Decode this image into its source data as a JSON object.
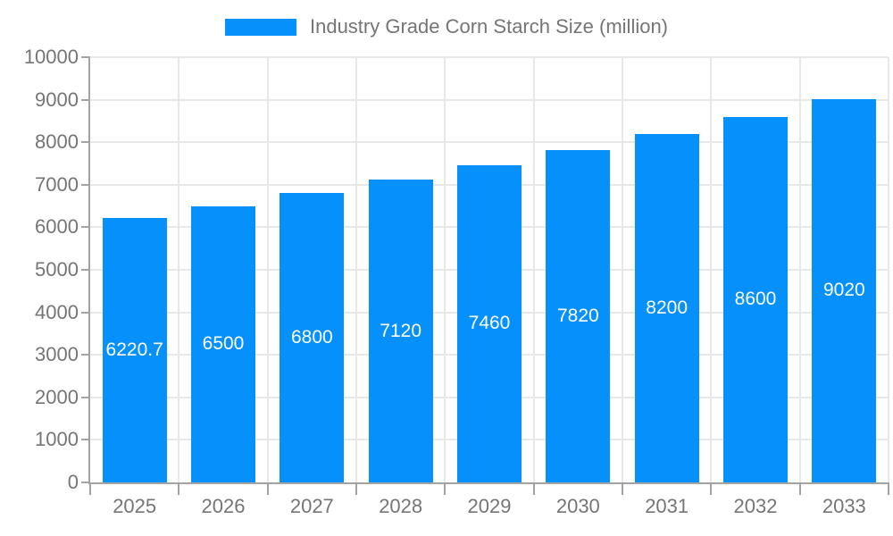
{
  "chart_data": {
    "type": "bar",
    "title": "",
    "legend_entries": [
      "Industry Grade Corn Starch Size (million)"
    ],
    "legend_position": "top-center",
    "categories": [
      "2025",
      "2026",
      "2027",
      "2028",
      "2029",
      "2030",
      "2031",
      "2032",
      "2033"
    ],
    "series": [
      {
        "name": "Industry Grade Corn Starch Size (million)",
        "values": [
          6220.7,
          6500,
          6800,
          7120,
          7460,
          7820,
          8200,
          8600,
          9020
        ],
        "value_labels": [
          "6220.7",
          "6500",
          "6800",
          "7120",
          "7460",
          "7820",
          "8200",
          "8600",
          "9020"
        ]
      }
    ],
    "xlabel": "",
    "ylabel": "",
    "ylim": [
      0,
      10000
    ],
    "ytick_step": 1000,
    "ytick_labels": [
      "0",
      "1000",
      "2000",
      "3000",
      "4000",
      "5000",
      "6000",
      "7000",
      "8000",
      "9000",
      "10000"
    ],
    "grid": "horizontal and vertical"
  },
  "legend": {
    "label": "Industry Grade Corn Starch Size (million)"
  },
  "colors": {
    "bar": "#0590fb",
    "axis_line": "#a3a3a3",
    "grid_line": "#e8e8e8",
    "axis_label_text": "#757575",
    "legend_text": "#757575",
    "value_label_text": "#ffffff"
  }
}
